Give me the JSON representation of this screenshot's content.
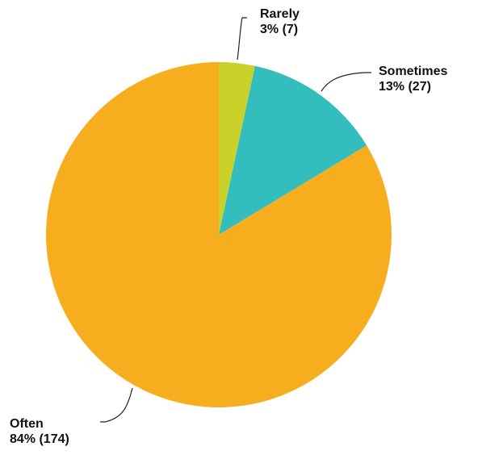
{
  "chart_data": {
    "type": "pie",
    "title": "",
    "start_angle_deg": 0,
    "direction": "clockwise",
    "slices": [
      {
        "label": "Rarely",
        "percent_label": "3%",
        "count": 7,
        "value_text": "3% (7)",
        "color": "#c8d22a"
      },
      {
        "label": "Sometimes",
        "percent_label": "13%",
        "count": 27,
        "value_text": "13% (27)",
        "color": "#33bdbd"
      },
      {
        "label": "Often",
        "percent_label": "84%",
        "count": 174,
        "value_text": "84% (174)",
        "color": "#f6ae1f"
      }
    ]
  }
}
